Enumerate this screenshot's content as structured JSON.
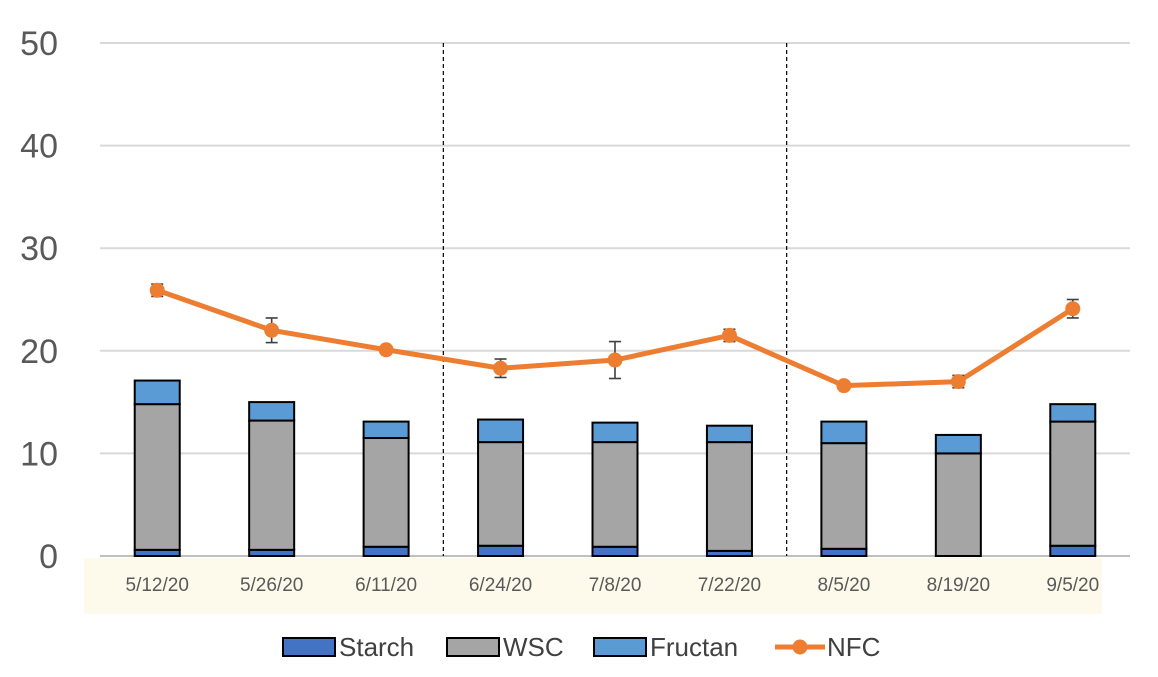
{
  "chart_data": {
    "type": "bar",
    "stacked": true,
    "categories": [
      "5/12/20",
      "5/26/20",
      "6/11/20",
      "6/24/20",
      "7/8/20",
      "7/22/20",
      "8/5/20",
      "8/19/20",
      "9/5/20"
    ],
    "series": [
      {
        "name": "Starch",
        "kind": "bar",
        "color": "#4472C4",
        "values": [
          0.6,
          0.6,
          0.9,
          1.0,
          0.9,
          0.5,
          0.7,
          0.0,
          1.0
        ]
      },
      {
        "name": "WSC",
        "kind": "bar",
        "color": "#A5A5A5",
        "values": [
          14.2,
          12.6,
          10.6,
          10.1,
          10.2,
          10.6,
          10.3,
          10.0,
          12.1
        ]
      },
      {
        "name": "Fructan",
        "kind": "bar",
        "color": "#5B9BD5",
        "values": [
          2.3,
          1.8,
          1.6,
          2.2,
          1.9,
          1.6,
          2.1,
          1.8,
          1.7
        ]
      },
      {
        "name": "NFC",
        "kind": "line",
        "color": "#ED7D31",
        "values": [
          25.9,
          22.0,
          20.1,
          18.3,
          19.1,
          21.5,
          16.6,
          17.0,
          24.1
        ],
        "error": [
          0.6,
          1.2,
          0.3,
          0.9,
          1.8,
          0.6,
          0.3,
          0.6,
          0.9
        ]
      }
    ],
    "yticks": [
      "0",
      "10",
      "20",
      "30",
      "40",
      "50"
    ],
    "ylim": [
      0,
      50
    ],
    "grid": true,
    "separators_after": [
      "6/11/20",
      "7/22/20"
    ],
    "legend_position": "bottom",
    "legend": [
      "Starch",
      "WSC",
      "Fructan",
      "NFC"
    ],
    "axis_label_band_color": "#FDFAEC",
    "xlabel": "",
    "ylabel": "",
    "title": ""
  }
}
